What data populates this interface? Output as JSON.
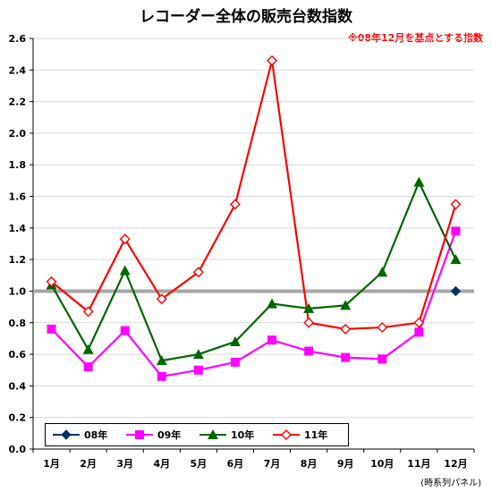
{
  "chart_data": {
    "type": "line",
    "title": "レコーダー全体の販売台数指数",
    "subtitle": "※08年12月を基点とする指数",
    "source_note": "(時系列パネル)",
    "categories": [
      "1月",
      "2月",
      "3月",
      "4月",
      "5月",
      "6月",
      "7月",
      "8月",
      "9月",
      "10月",
      "11月",
      "12月"
    ],
    "ylim": [
      0.0,
      2.6
    ],
    "yticks": [
      "0.0",
      "0.2",
      "0.4",
      "0.6",
      "0.8",
      "1.0",
      "1.2",
      "1.4",
      "1.6",
      "1.8",
      "2.0",
      "2.2",
      "2.4",
      "2.6"
    ],
    "reference_line": 1.0,
    "legend_position": "bottom-left",
    "series": [
      {
        "name": "08年",
        "color": "#003366",
        "marker": "diamond",
        "values": [
          null,
          null,
          null,
          null,
          null,
          null,
          null,
          null,
          null,
          null,
          null,
          1.0
        ]
      },
      {
        "name": "09年",
        "color": "#ff00ff",
        "marker": "square",
        "values": [
          0.76,
          0.52,
          0.75,
          0.46,
          0.5,
          0.55,
          0.69,
          0.62,
          0.58,
          0.57,
          0.74,
          1.38
        ]
      },
      {
        "name": "10年",
        "color": "#006600",
        "marker": "triangle",
        "values": [
          1.04,
          0.63,
          1.13,
          0.56,
          0.6,
          0.68,
          0.92,
          0.89,
          0.91,
          1.12,
          1.69,
          1.2
        ]
      },
      {
        "name": "11年",
        "color": "#ff0000",
        "marker": "open-diamond",
        "values": [
          1.06,
          0.87,
          1.33,
          0.95,
          1.12,
          1.55,
          2.46,
          0.8,
          0.76,
          0.77,
          0.8,
          1.55
        ]
      }
    ]
  }
}
